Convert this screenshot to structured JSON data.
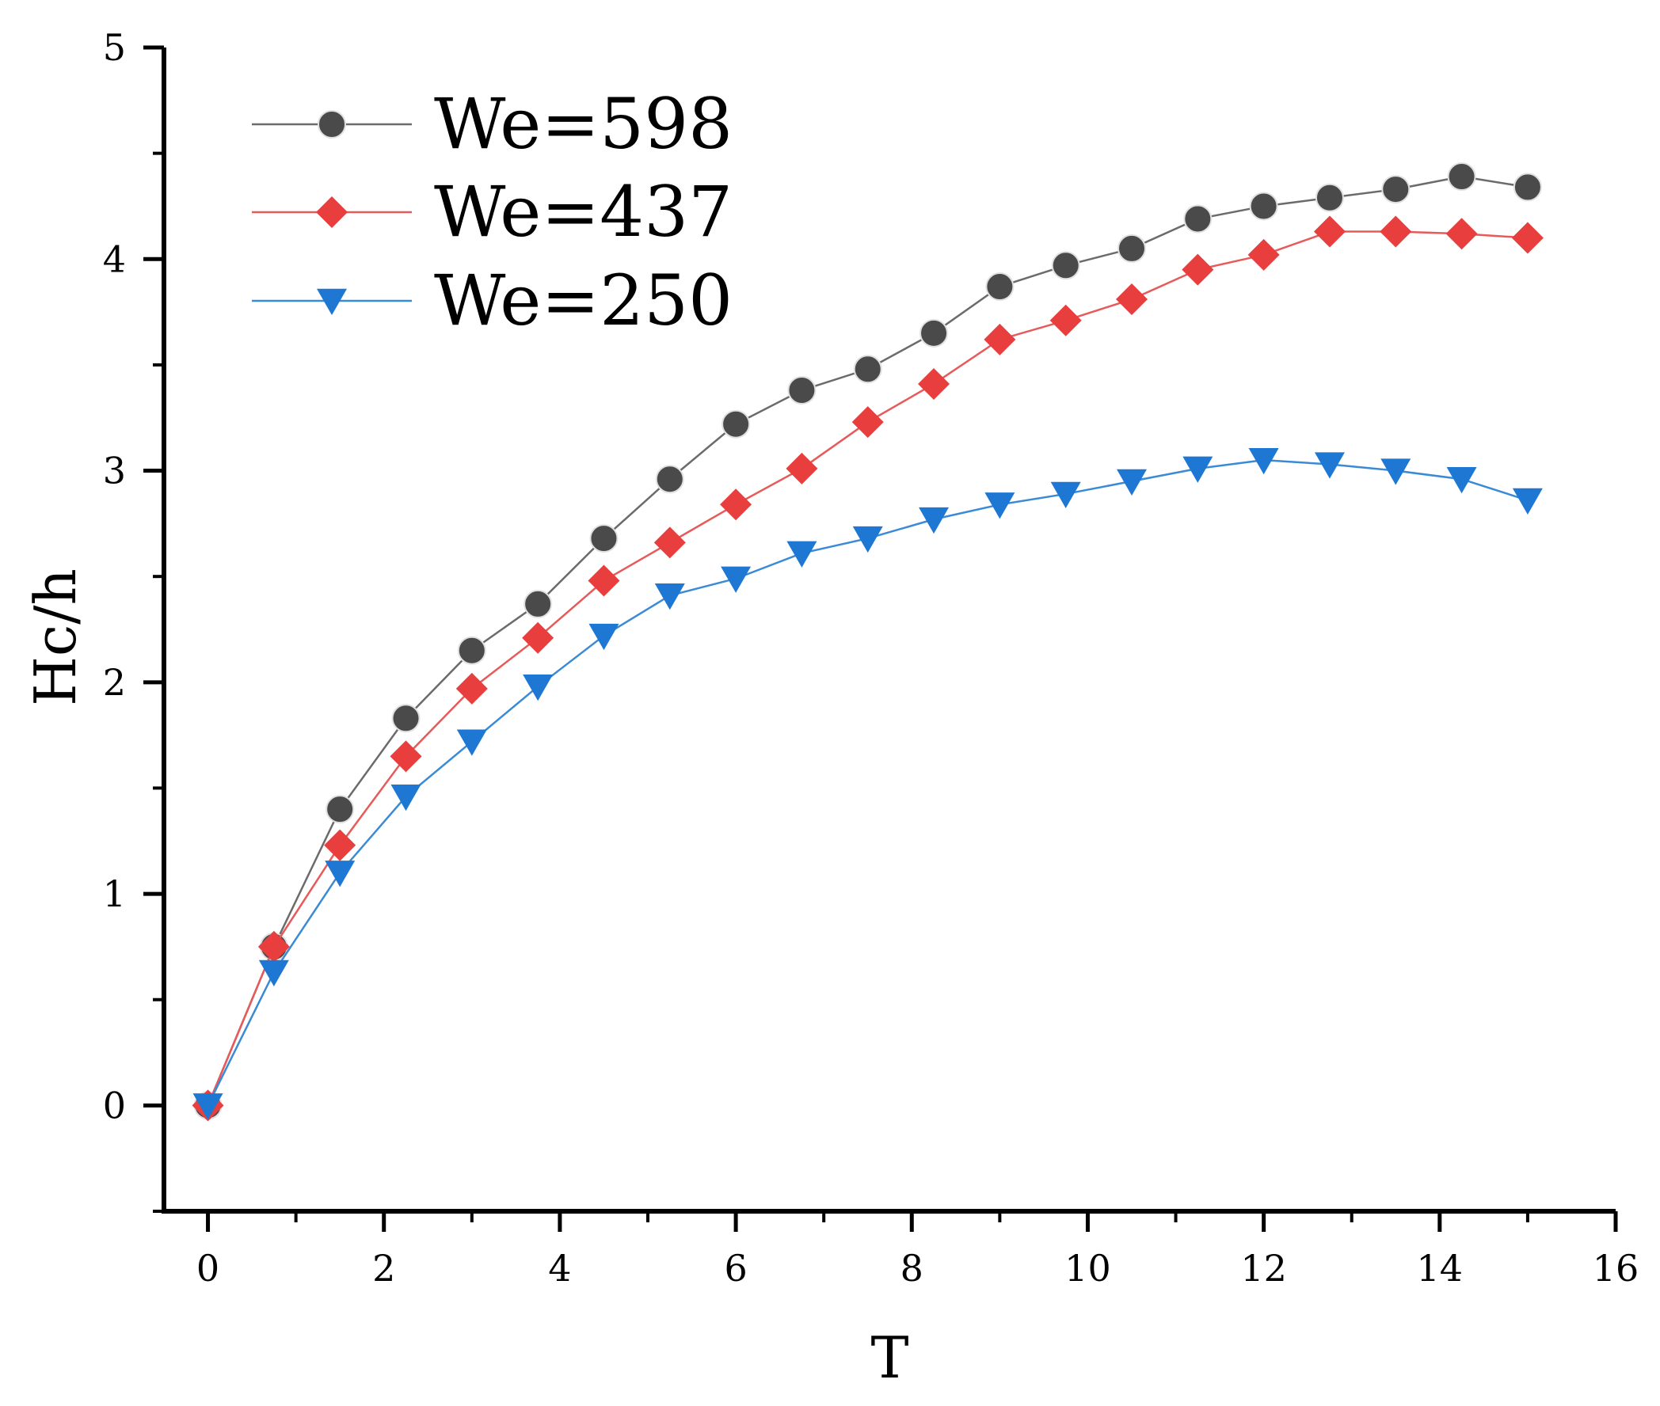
{
  "chart_data": {
    "type": "line",
    "title": "",
    "xlabel": "T",
    "ylabel": "Hc/h",
    "xlim": [
      -0.5,
      16
    ],
    "ylim": [
      -0.5,
      5
    ],
    "x_ticks": [
      "0",
      "2",
      "4",
      "6",
      "8",
      "10",
      "12",
      "14",
      "16"
    ],
    "y_ticks": [
      "0",
      "1",
      "2",
      "3",
      "4",
      "5"
    ],
    "grid": false,
    "legend_position": "top-left",
    "x": [
      0,
      0.75,
      1.5,
      2.25,
      3,
      3.75,
      4.5,
      5.25,
      6,
      6.75,
      7.5,
      8.25,
      9,
      9.75,
      10.5,
      11.25,
      12,
      12.75,
      13.5,
      14.25,
      15
    ],
    "series": [
      {
        "name": "We=598",
        "color": "#4a4a4a",
        "line_color": "#6b6b6b",
        "marker": "circle",
        "values": [
          0,
          0.75,
          1.4,
          1.83,
          2.15,
          2.37,
          2.68,
          2.96,
          3.22,
          3.38,
          3.48,
          3.65,
          3.87,
          3.97,
          4.05,
          4.19,
          4.25,
          4.29,
          4.33,
          4.39,
          4.34
        ]
      },
      {
        "name": "We=437",
        "color": "#e83e3e",
        "line_color": "#e85a5a",
        "marker": "diamond",
        "values": [
          0,
          0.75,
          1.23,
          1.65,
          1.97,
          2.21,
          2.48,
          2.66,
          2.84,
          3.01,
          3.23,
          3.41,
          3.62,
          3.71,
          3.81,
          3.95,
          4.02,
          4.13,
          4.13,
          4.12,
          4.1
        ]
      },
      {
        "name": "We=250",
        "color": "#1f77d4",
        "line_color": "#3a8ad6",
        "marker": "triangle-down",
        "values": [
          0,
          0.63,
          1.1,
          1.46,
          1.72,
          1.98,
          2.22,
          2.41,
          2.49,
          2.61,
          2.68,
          2.77,
          2.84,
          2.89,
          2.95,
          3.01,
          3.05,
          3.03,
          3.0,
          2.96,
          2.86
        ]
      }
    ]
  }
}
